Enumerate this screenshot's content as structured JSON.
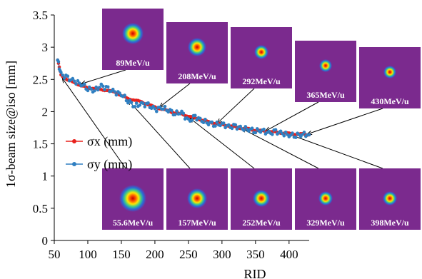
{
  "chart_data": {
    "type": "scatter",
    "xlabel": "RID",
    "ylabel": "1σ-beam size@iso [mm]",
    "xlim": [
      50,
      430
    ],
    "ylim": [
      0,
      3.5
    ],
    "x_ticks": [
      50,
      100,
      150,
      200,
      250,
      300,
      350,
      400
    ],
    "x_tick_labels": [
      "50",
      "100",
      "150",
      "200",
      "250",
      "300",
      "350",
      "400"
    ],
    "y_ticks": [
      0,
      0.5,
      1,
      1.5,
      2,
      2.5,
      3,
      3.5
    ],
    "y_tick_labels": [
      "0",
      "0.5",
      "1",
      "1.5",
      "2",
      "2.5",
      "3",
      "3.5"
    ],
    "grid": false,
    "legend_position": "left",
    "colors": {
      "sigma_x": "#e8201c",
      "sigma_y": "#2f7fc1",
      "beam_bg": "#7b2a8e"
    },
    "series": [
      {
        "name": "σx (mm)",
        "color": "#e8201c",
        "x": [
          55,
          60,
          70,
          80,
          90,
          100,
          110,
          120,
          130,
          140,
          150,
          160,
          170,
          180,
          190,
          200,
          210,
          220,
          230,
          240,
          250,
          260,
          270,
          280,
          290,
          300,
          310,
          320,
          330,
          340,
          350,
          360,
          370,
          380,
          390,
          400,
          410,
          420,
          430
        ],
        "y": [
          2.8,
          2.57,
          2.49,
          2.45,
          2.4,
          2.37,
          2.36,
          2.34,
          2.33,
          2.3,
          2.25,
          2.2,
          2.18,
          2.15,
          2.11,
          2.07,
          2.04,
          2.01,
          1.98,
          1.96,
          1.93,
          1.9,
          1.87,
          1.84,
          1.82,
          1.8,
          1.78,
          1.76,
          1.74,
          1.73,
          1.71,
          1.7,
          1.69,
          1.68,
          1.67,
          1.66,
          1.65,
          1.65,
          1.64
        ]
      },
      {
        "name": "σy (mm)",
        "color": "#2f7fc1",
        "x": [
          55,
          60,
          70,
          80,
          90,
          100,
          110,
          120,
          130,
          140,
          150,
          160,
          170,
          180,
          190,
          200,
          210,
          220,
          230,
          240,
          250,
          260,
          270,
          280,
          290,
          300,
          310,
          320,
          330,
          340,
          350,
          360,
          370,
          380,
          390,
          400,
          410,
          420,
          430
        ],
        "y": [
          2.8,
          2.58,
          2.52,
          2.47,
          2.43,
          2.36,
          2.33,
          2.4,
          2.35,
          2.3,
          2.27,
          2.17,
          2.09,
          2.12,
          2.1,
          2.03,
          2.06,
          2.03,
          1.97,
          1.99,
          1.85,
          1.92,
          1.86,
          1.83,
          1.8,
          1.81,
          1.76,
          1.77,
          1.74,
          1.73,
          1.7,
          1.71,
          1.66,
          1.69,
          1.66,
          1.64,
          1.63,
          1.65,
          1.64
        ]
      }
    ],
    "beam_images_top": [
      {
        "label": "89MeV/u",
        "target": [
          90,
          2.43
        ]
      },
      {
        "label": "208MeV/u",
        "target": [
          207,
          2.07
        ]
      },
      {
        "label": "292MeV/u",
        "target": [
          293,
          1.82
        ]
      },
      {
        "label": "365MeV/u",
        "target": [
          365,
          1.7
        ]
      },
      {
        "label": "430MeV/u",
        "target": [
          427,
          1.65
        ]
      }
    ],
    "beam_images_bottom": [
      {
        "label": "55.6MeV/u",
        "target": [
          62,
          2.52
        ]
      },
      {
        "label": "157MeV/u",
        "target": [
          160,
          2.18
        ]
      },
      {
        "label": "252MeV/u",
        "target": [
          252,
          1.9
        ]
      },
      {
        "label": "329MeV/u",
        "target": [
          329,
          1.74
        ]
      },
      {
        "label": "398MeV/u",
        "target": [
          397,
          1.66
        ]
      }
    ]
  }
}
